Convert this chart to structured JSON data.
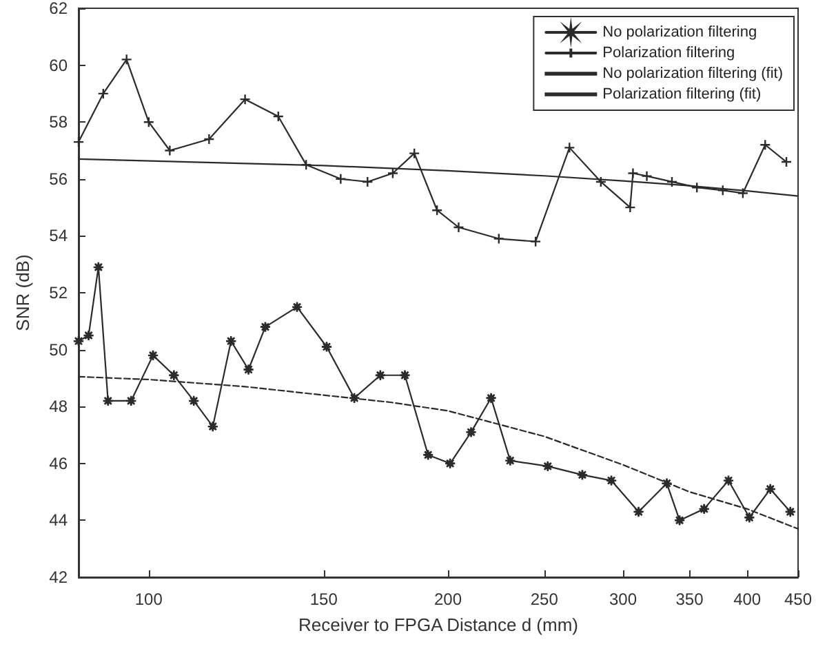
{
  "chart_data": {
    "type": "line",
    "xlabel": "Receiver to FPGA Distance d (mm)",
    "ylabel": "SNR (dB)",
    "log": "x",
    "xlim": [
      85,
      450
    ],
    "xticks": [
      100,
      150,
      200,
      250,
      300,
      350,
      400,
      450
    ],
    "ylim": [
      42,
      62
    ],
    "yticks": [
      42,
      44,
      46,
      48,
      50,
      52,
      54,
      56,
      58,
      60,
      62
    ],
    "grid": false,
    "legend": "top right",
    "series": [
      {
        "name": "No polarization filtering",
        "color": "#2b2b2b",
        "marker": "star",
        "line_style": "solid",
        "x": [
          85,
          87,
          89,
          91,
          96,
          101,
          106,
          111,
          116,
          121,
          126,
          131,
          141,
          151,
          161,
          171,
          181,
          191,
          201,
          211,
          221,
          231,
          252,
          273,
          292,
          311,
          332,
          342,
          362,
          383,
          402,
          422,
          442
        ],
        "values": [
          50.3,
          50.5,
          52.9,
          48.2,
          48.2,
          49.8,
          49.1,
          48.2,
          47.3,
          50.3,
          49.3,
          50.8,
          51.5,
          50.1,
          48.3,
          49.1,
          49.1,
          46.3,
          46.0,
          47.1,
          48.3,
          46.1,
          45.9,
          45.6,
          45.4,
          44.3,
          45.3,
          44.0,
          44.4,
          45.4,
          44.1,
          45.1,
          44.3
        ]
      },
      {
        "name": "Polarization filtering",
        "color": "#2b2b2b",
        "marker": "cross",
        "line_style": "solid",
        "x": [
          85,
          90,
          95,
          100,
          105,
          115,
          125,
          135,
          144,
          156,
          166,
          176,
          185,
          195,
          205,
          225,
          245,
          265,
          285,
          305,
          307,
          317,
          336,
          356,
          378,
          396,
          417,
          438
        ],
        "values": [
          57.3,
          59.0,
          60.2,
          58.0,
          57.0,
          57.4,
          58.8,
          58.2,
          56.5,
          56.0,
          55.9,
          56.2,
          56.9,
          54.9,
          54.3,
          53.9,
          53.8,
          57.1,
          55.9,
          55.0,
          56.2,
          56.1,
          55.9,
          55.7,
          55.6,
          55.5,
          57.2,
          56.6
        ]
      },
      {
        "name": "No polarization filtering (fit)",
        "color": "#2b2b2b",
        "marker": "none",
        "line_style": "dashed",
        "x": [
          85,
          100,
          125,
          150,
          175,
          200,
          250,
          300,
          350,
          400,
          450
        ],
        "values": [
          49.05,
          48.95,
          48.7,
          48.4,
          48.15,
          47.85,
          46.95,
          45.95,
          45.0,
          44.4,
          43.7
        ]
      },
      {
        "name": "Polarization filtering (fit)",
        "color": "#2b2b2b",
        "marker": "none",
        "line_style": "solid",
        "x": [
          85,
          150,
          200,
          250,
          300,
          350,
          400,
          450
        ],
        "values": [
          56.7,
          56.47,
          56.29,
          56.11,
          55.93,
          55.76,
          55.58,
          55.4
        ]
      }
    ]
  }
}
